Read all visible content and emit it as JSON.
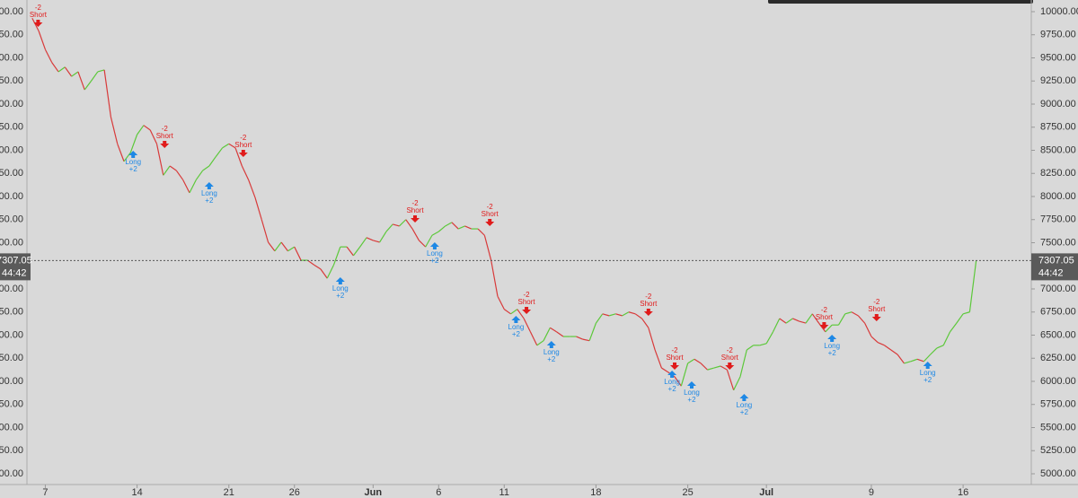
{
  "chart_data": {
    "type": "line",
    "x": [
      6.0,
      6.5,
      7,
      7.5,
      8,
      8.5,
      9,
      9.5,
      10,
      10.5,
      11,
      11.5,
      12,
      12.5,
      13,
      13.5,
      14,
      14.5,
      15,
      15.5,
      16,
      16.5,
      17,
      17.5,
      18,
      18.5,
      19,
      19.5,
      20,
      20.5,
      21,
      21.5,
      22,
      22.5,
      23,
      23.5,
      24,
      24.5,
      25,
      25.5,
      26,
      26.5,
      27,
      27.5,
      28,
      28.5,
      29,
      29.5,
      30,
      30.5,
      31,
      31.5,
      32,
      32.5,
      33,
      33.5,
      34,
      34.5,
      35,
      35.5,
      36,
      36.5,
      37,
      37.5,
      38,
      38.5,
      39,
      39.5,
      40,
      40.5,
      41,
      41.5,
      42,
      42.5,
      43,
      43.5,
      44,
      44.5,
      45,
      45.5,
      46,
      46.5,
      47,
      47.5,
      48,
      48.5,
      49,
      49.5,
      50,
      50.5,
      51,
      51.5,
      52,
      52.5,
      53,
      53.5,
      54,
      54.5,
      55,
      55.5,
      56,
      56.5,
      57,
      57.5,
      58,
      58.5,
      59,
      59.5,
      60,
      60.5,
      61,
      61.5,
      62,
      62.5,
      63,
      63.5,
      64,
      64.5,
      65,
      65.5,
      66,
      66.5,
      67,
      67.5,
      68,
      68.5,
      69,
      69.5,
      70,
      70.5,
      71,
      71.5,
      72,
      72.5,
      73,
      73.5,
      74,
      74.5,
      75,
      75.5,
      76,
      76.5,
      77,
      77.5,
      78
    ],
    "series": [
      {
        "up_color": "#5cc83a",
        "down_color": "#d83a3a",
        "values": [
          9930,
          9790,
          9590,
          9450,
          9350,
          9400,
          9300,
          9350,
          9155,
          9250,
          9350,
          9370,
          8860,
          8570,
          8380,
          8475,
          8670,
          8770,
          8720,
          8570,
          8230,
          8330,
          8280,
          8180,
          8040,
          8180,
          8280,
          8330,
          8430,
          8525,
          8570,
          8525,
          8330,
          8180,
          7990,
          7750,
          7505,
          7410,
          7505,
          7410,
          7455,
          7310,
          7310,
          7260,
          7215,
          7115,
          7260,
          7455,
          7455,
          7360,
          7455,
          7555,
          7525,
          7505,
          7620,
          7700,
          7680,
          7750,
          7650,
          7525,
          7455,
          7580,
          7620,
          7680,
          7720,
          7650,
          7680,
          7650,
          7650,
          7580,
          7310,
          6920,
          6780,
          6730,
          6780,
          6680,
          6535,
          6390,
          6440,
          6580,
          6535,
          6485,
          6485,
          6485,
          6455,
          6440,
          6630,
          6730,
          6710,
          6730,
          6710,
          6750,
          6730,
          6680,
          6580,
          6340,
          6145,
          6100,
          6050,
          5950,
          6195,
          6240,
          6195,
          6125,
          6145,
          6165,
          6125,
          5905,
          6050,
          6340,
          6390,
          6390,
          6410,
          6535,
          6680,
          6630,
          6680,
          6650,
          6630,
          6730,
          6630,
          6535,
          6610,
          6610,
          6730,
          6750,
          6710,
          6630,
          6485,
          6420,
          6390,
          6340,
          6290,
          6195,
          6215,
          6240,
          6215,
          6290,
          6360,
          6390,
          6535,
          6630,
          6730,
          6750,
          7310
        ]
      }
    ],
    "xlim": [
      5.6,
      82.2
    ],
    "xticks": [
      {
        "value": 7,
        "label": "7"
      },
      {
        "value": 14,
        "label": "14"
      },
      {
        "value": 21,
        "label": "21"
      },
      {
        "value": 26,
        "label": "26"
      },
      {
        "value": 32,
        "label": "Jun"
      },
      {
        "value": 37,
        "label": "6"
      },
      {
        "value": 42,
        "label": "11"
      },
      {
        "value": 49,
        "label": "18"
      },
      {
        "value": 56,
        "label": "25"
      },
      {
        "value": 62,
        "label": "Jul"
      },
      {
        "value": 70,
        "label": "9"
      },
      {
        "value": 77,
        "label": "16"
      }
    ],
    "ylim": [
      5000,
      10000
    ],
    "yticks": [
      {
        "value": 5000,
        "label": "5000.00"
      },
      {
        "value": 5250,
        "label": "5250.00"
      },
      {
        "value": 5500,
        "label": "5500.00"
      },
      {
        "value": 5750,
        "label": "5750.00"
      },
      {
        "value": 6000,
        "label": "6000.00"
      },
      {
        "value": 6250,
        "label": "6250.00"
      },
      {
        "value": 6500,
        "label": "6500.00"
      },
      {
        "value": 6750,
        "label": "6750.00"
      },
      {
        "value": 7000,
        "label": "7000.00"
      },
      {
        "value": 7250,
        "label": "7250.00"
      },
      {
        "value": 7500,
        "label": "7500.00"
      },
      {
        "value": 7750,
        "label": "7750.00"
      },
      {
        "value": 8000,
        "label": "8000.00"
      },
      {
        "value": 8250,
        "label": "8250.00"
      },
      {
        "value": 8500,
        "label": "8500.00"
      },
      {
        "value": 8750,
        "label": "8750.00"
      },
      {
        "value": 9000,
        "label": "9000.00"
      },
      {
        "value": 9250,
        "label": "9250.00"
      },
      {
        "value": 9500,
        "label": "9500.00"
      },
      {
        "value": 9750,
        "label": "9750.00"
      },
      {
        "value": 10000,
        "label": "10000.00"
      }
    ],
    "last_price": {
      "value": 7307.05,
      "label": "7307.05"
    },
    "countdown": "44:42",
    "signals": [
      {
        "side": "short",
        "qty": "-2",
        "text": "Short",
        "x": 6.45,
        "y": 9854
      },
      {
        "side": "short",
        "qty": "-2",
        "text": "Short",
        "x": 16.1,
        "y": 8544
      },
      {
        "side": "short",
        "qty": "-2",
        "text": "Short",
        "x": 22.1,
        "y": 8447
      },
      {
        "side": "short",
        "qty": "-2",
        "text": "Short",
        "x": 35.2,
        "y": 7738
      },
      {
        "side": "short",
        "qty": "-2",
        "text": "Short",
        "x": 40.9,
        "y": 7699
      },
      {
        "side": "short",
        "qty": "-2",
        "text": "Short",
        "x": 43.7,
        "y": 6748
      },
      {
        "side": "short",
        "qty": "-2",
        "text": "Short",
        "x": 53.0,
        "y": 6728
      },
      {
        "side": "short",
        "qty": "-2",
        "text": "Short",
        "x": 55.0,
        "y": 6146
      },
      {
        "side": "short",
        "qty": "-2",
        "text": "Short",
        "x": 59.2,
        "y": 6146
      },
      {
        "side": "short",
        "qty": "-2",
        "text": "Short",
        "x": 66.4,
        "y": 6583
      },
      {
        "side": "short",
        "qty": "-2",
        "text": "Short",
        "x": 70.4,
        "y": 6670
      },
      {
        "side": "long",
        "qty": "+2",
        "text": "Long",
        "x": 13.7,
        "y": 8476
      },
      {
        "side": "long",
        "qty": "+2",
        "text": "Long",
        "x": 19.5,
        "y": 8136
      },
      {
        "side": "long",
        "qty": "+2",
        "text": "Long",
        "x": 29.5,
        "y": 7107
      },
      {
        "side": "long",
        "qty": "+2",
        "text": "Long",
        "x": 36.7,
        "y": 7485
      },
      {
        "side": "long",
        "qty": "+2",
        "text": "Long",
        "x": 42.9,
        "y": 6689
      },
      {
        "side": "long",
        "qty": "+2",
        "text": "Long",
        "x": 45.6,
        "y": 6417
      },
      {
        "side": "long",
        "qty": "+2",
        "text": "Long",
        "x": 54.8,
        "y": 6097
      },
      {
        "side": "long",
        "qty": "+2",
        "text": "Long",
        "x": 56.3,
        "y": 5981
      },
      {
        "side": "long",
        "qty": "+2",
        "text": "Long",
        "x": 60.3,
        "y": 5845
      },
      {
        "side": "long",
        "qty": "+2",
        "text": "Long",
        "x": 67.0,
        "y": 6485
      },
      {
        "side": "long",
        "qty": "+2",
        "text": "Long",
        "x": 74.3,
        "y": 6194
      }
    ],
    "short_color": "#e01b1b",
    "long_color": "#1e88e5"
  }
}
